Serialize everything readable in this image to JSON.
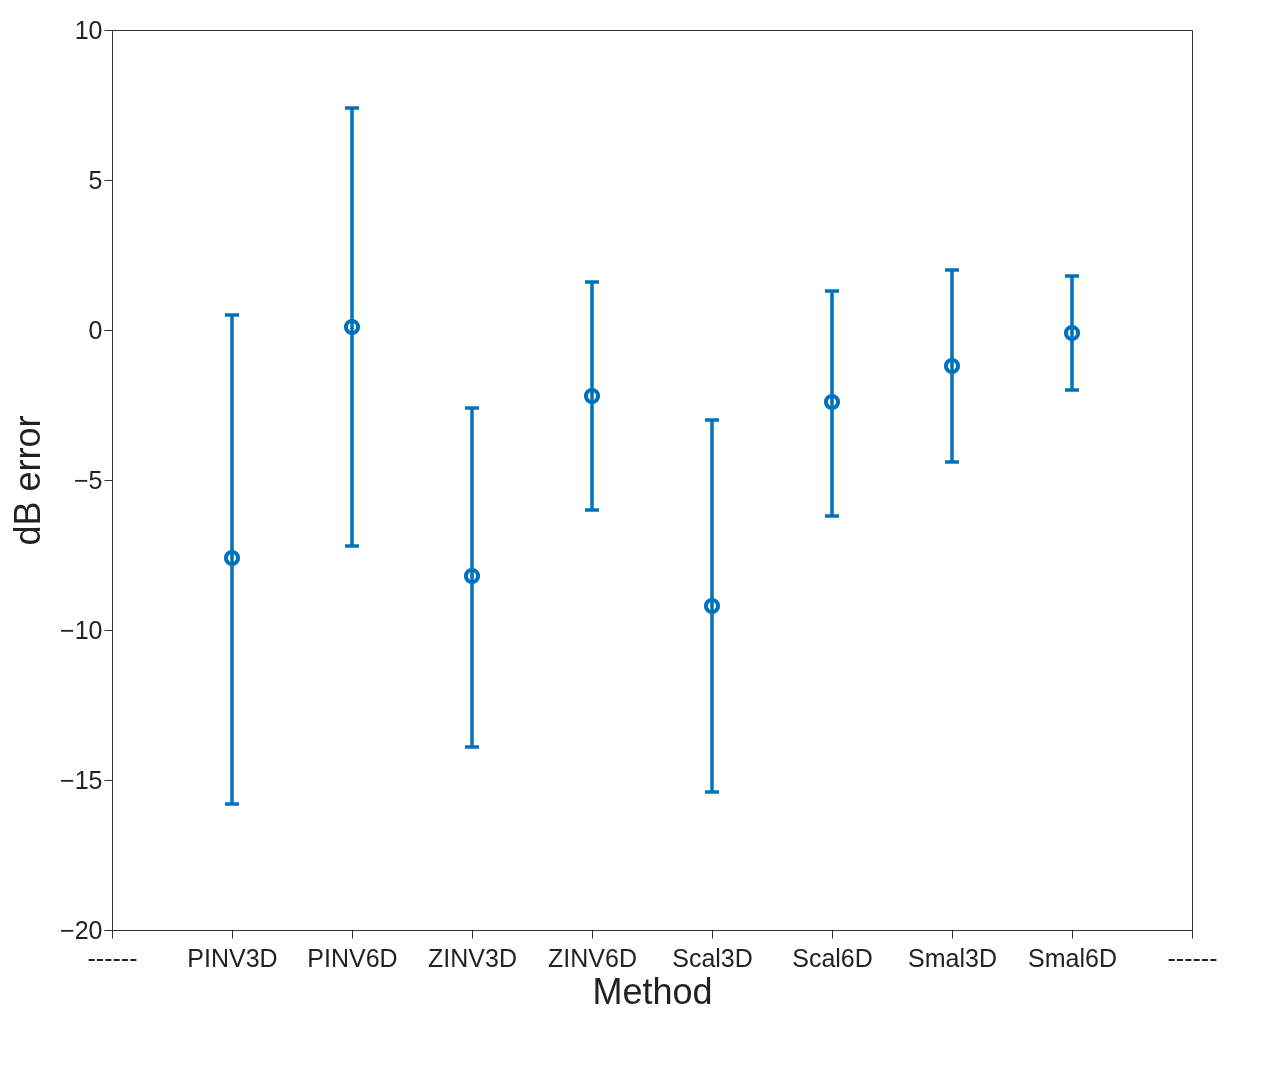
{
  "chart_data": {
    "type": "scatter",
    "xlabel": "Method",
    "ylabel": "dB error",
    "categories": [
      "------",
      "PINV3D",
      "PINV6D",
      "ZINV3D",
      "ZINV6D",
      "Scal3D",
      "Scal6D",
      "Smal3D",
      "Smal6D",
      "------"
    ],
    "values": [
      null,
      -7.6,
      0.1,
      -8.2,
      -2.2,
      -9.2,
      -2.4,
      -1.2,
      -0.1,
      null
    ],
    "errors": [
      null,
      [
        -15.8,
        0.5
      ],
      [
        -7.2,
        7.4
      ],
      [
        -13.9,
        -2.6
      ],
      [
        -6.0,
        1.6
      ],
      [
        -15.4,
        -3.0
      ],
      [
        -6.2,
        1.3
      ],
      [
        -4.4,
        2.0
      ],
      [
        -2.0,
        1.8
      ],
      null
    ],
    "color": "#0072bd",
    "marker": "circle",
    "ylim": [
      -20,
      10
    ],
    "yticks": [
      -20,
      -15,
      -10,
      -5,
      0,
      5,
      10
    ],
    "grid": false
  }
}
